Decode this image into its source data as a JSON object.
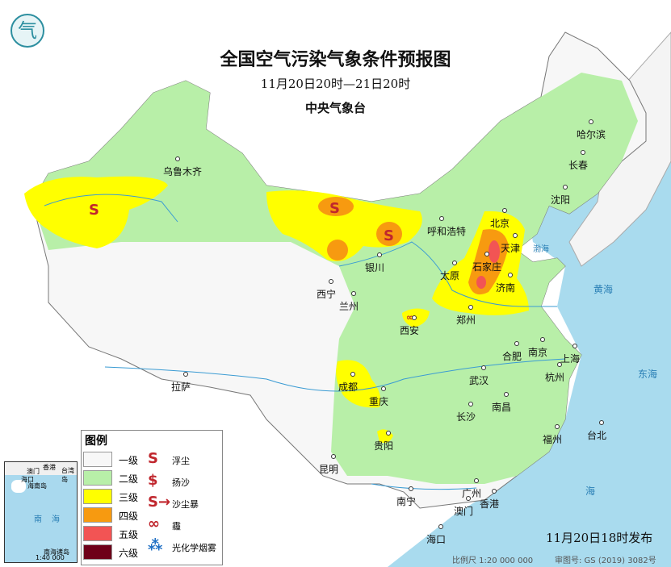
{
  "header": {
    "title": "全国空气污染气象条件预报图",
    "period": "11月20日20时—21日20时",
    "agency": "中央气象台"
  },
  "logo": {
    "icon": "cma-logo"
  },
  "cities": [
    "乌鲁木齐",
    "哈尔滨",
    "长春",
    "沈阳",
    "北京",
    "天津",
    "呼和浩特",
    "银川",
    "太原",
    "石家庄",
    "济南",
    "西宁",
    "兰州",
    "郑州",
    "西安",
    "合肥",
    "南京",
    "上海",
    "杭州",
    "武汉",
    "拉萨",
    "成都",
    "重庆",
    "南昌",
    "长沙",
    "福州",
    "台北",
    "贵阳",
    "昆明",
    "广州",
    "南宁",
    "澳门",
    "香港",
    "海口"
  ],
  "seas": [
    "渤海",
    "黄海",
    "东海",
    "海",
    "南",
    "海"
  ],
  "legend": {
    "title": "图例",
    "levels": [
      {
        "label": "一级",
        "color": "#f7f7f7"
      },
      {
        "label": "二级",
        "color": "#b8efa8"
      },
      {
        "label": "三级",
        "color": "#ffff00"
      },
      {
        "label": "四级",
        "color": "#f79a10"
      },
      {
        "label": "五级",
        "color": "#f25454"
      },
      {
        "label": "六级",
        "color": "#6e0019"
      }
    ],
    "symbols": [
      {
        "label": "浮尘",
        "icon": "floating-dust-icon",
        "glyph": "S"
      },
      {
        "label": "扬沙",
        "icon": "blowing-sand-icon",
        "glyph": "$"
      },
      {
        "label": "沙尘暴",
        "icon": "sandstorm-icon",
        "glyph": "S→"
      },
      {
        "label": "霾",
        "icon": "haze-icon",
        "glyph": "∞"
      },
      {
        "label": "光化学烟雾",
        "icon": "photochemical-smog-icon",
        "glyph": "⁂"
      }
    ]
  },
  "inset": {
    "labels": [
      "澳门",
      "香港",
      "台湾岛",
      "海口",
      "海南岛",
      "南",
      "海",
      "南海诸岛"
    ],
    "scale": "1:40 000 000"
  },
  "footer": {
    "published": "11月20日18时发布",
    "scale": "比例尺 1:20 000 000",
    "approval": "审图号: GS (2019) 3082号"
  }
}
